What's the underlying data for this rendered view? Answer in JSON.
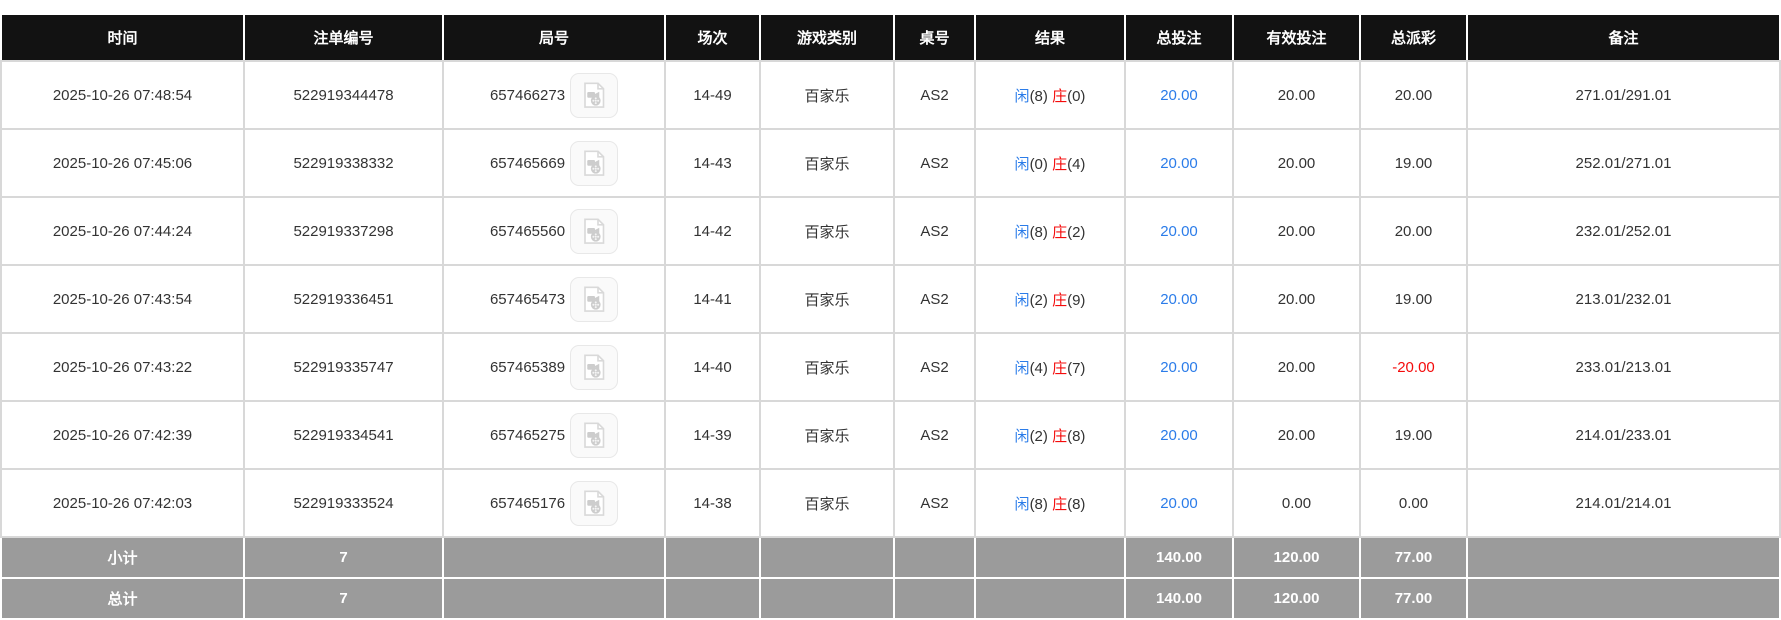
{
  "colors": {
    "header_bg": "#121212",
    "grid": "#d8d8d8",
    "footer_bg": "#9b9b9b",
    "accent_blue": "#2b7ce9",
    "negative_red": "#f40b0b",
    "body_text": "#333333"
  },
  "table": {
    "columns": [
      {
        "key": "time",
        "label": "时间"
      },
      {
        "key": "bet_id",
        "label": "注单编号"
      },
      {
        "key": "round_no",
        "label": "局号"
      },
      {
        "key": "session",
        "label": "场次"
      },
      {
        "key": "game_type",
        "label": "游戏类别"
      },
      {
        "key": "table_no",
        "label": "桌号"
      },
      {
        "key": "result",
        "label": "结果"
      },
      {
        "key": "total_bet",
        "label": "总投注"
      },
      {
        "key": "valid_bet",
        "label": "有效投注"
      },
      {
        "key": "total_payout",
        "label": "总派彩"
      },
      {
        "key": "remark",
        "label": "备注"
      }
    ],
    "rows": [
      {
        "time": "2025-10-26 07:48:54",
        "bet_id": "522919344478",
        "round_no": "657466273",
        "session": "14-49",
        "game_type": "百家乐",
        "table_no": "AS2",
        "result": {
          "player_label": "闲",
          "player_score": "(8)",
          "banker_label": "庄",
          "banker_score": "(0)"
        },
        "total_bet": "20.00",
        "valid_bet": "20.00",
        "total_payout": "20.00",
        "remark": "271.01/291.01"
      },
      {
        "time": "2025-10-26 07:45:06",
        "bet_id": "522919338332",
        "round_no": "657465669",
        "session": "14-43",
        "game_type": "百家乐",
        "table_no": "AS2",
        "result": {
          "player_label": "闲",
          "player_score": "(0)",
          "banker_label": "庄",
          "banker_score": "(4)"
        },
        "total_bet": "20.00",
        "valid_bet": "20.00",
        "total_payout": "19.00",
        "remark": "252.01/271.01"
      },
      {
        "time": "2025-10-26 07:44:24",
        "bet_id": "522919337298",
        "round_no": "657465560",
        "session": "14-42",
        "game_type": "百家乐",
        "table_no": "AS2",
        "result": {
          "player_label": "闲",
          "player_score": "(8)",
          "banker_label": "庄",
          "banker_score": "(2)"
        },
        "total_bet": "20.00",
        "valid_bet": "20.00",
        "total_payout": "20.00",
        "remark": "232.01/252.01"
      },
      {
        "time": "2025-10-26 07:43:54",
        "bet_id": "522919336451",
        "round_no": "657465473",
        "session": "14-41",
        "game_type": "百家乐",
        "table_no": "AS2",
        "result": {
          "player_label": "闲",
          "player_score": "(2)",
          "banker_label": "庄",
          "banker_score": "(9)"
        },
        "total_bet": "20.00",
        "valid_bet": "20.00",
        "total_payout": "19.00",
        "remark": "213.01/232.01"
      },
      {
        "time": "2025-10-26 07:43:22",
        "bet_id": "522919335747",
        "round_no": "657465389",
        "session": "14-40",
        "game_type": "百家乐",
        "table_no": "AS2",
        "result": {
          "player_label": "闲",
          "player_score": "(4)",
          "banker_label": "庄",
          "banker_score": "(7)"
        },
        "total_bet": "20.00",
        "valid_bet": "20.00",
        "total_payout": "-20.00",
        "remark": "233.01/213.01"
      },
      {
        "time": "2025-10-26 07:42:39",
        "bet_id": "522919334541",
        "round_no": "657465275",
        "session": "14-39",
        "game_type": "百家乐",
        "table_no": "AS2",
        "result": {
          "player_label": "闲",
          "player_score": "(2)",
          "banker_label": "庄",
          "banker_score": "(8)"
        },
        "total_bet": "20.00",
        "valid_bet": "20.00",
        "total_payout": "19.00",
        "remark": "214.01/233.01"
      },
      {
        "time": "2025-10-26 07:42:03",
        "bet_id": "522919333524",
        "round_no": "657465176",
        "session": "14-38",
        "game_type": "百家乐",
        "table_no": "AS2",
        "result": {
          "player_label": "闲",
          "player_score": "(8)",
          "banker_label": "庄",
          "banker_score": "(8)"
        },
        "total_bet": "20.00",
        "valid_bet": "0.00",
        "total_payout": "0.00",
        "remark": "214.01/214.01"
      }
    ],
    "footer_rows": [
      {
        "label": "小计",
        "bet_count": "7",
        "total_bet": "140.00",
        "valid_bet": "120.00",
        "total_payout": "77.00"
      },
      {
        "label": "总计",
        "bet_count": "7",
        "total_bet": "140.00",
        "valid_bet": "120.00",
        "total_payout": "77.00"
      }
    ],
    "video_icon_name": "video-replay-icon"
  }
}
